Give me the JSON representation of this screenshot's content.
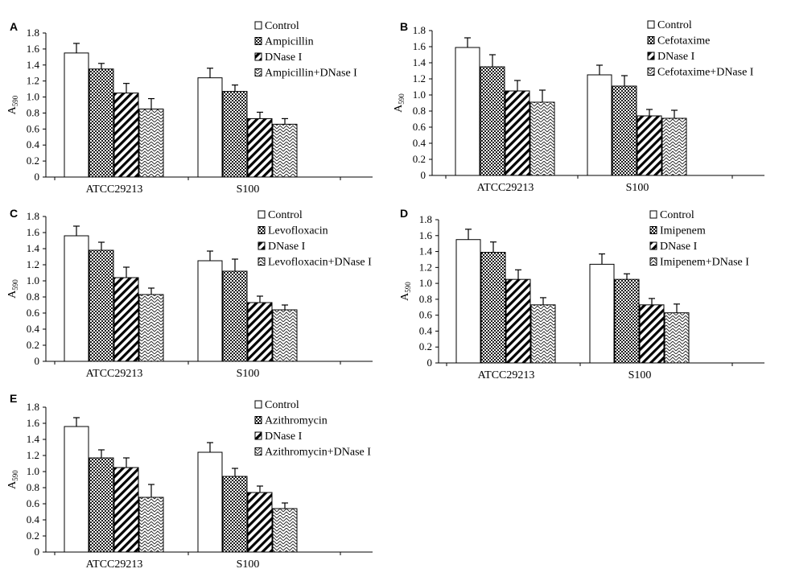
{
  "chart_data": [
    {
      "panel": "A",
      "type": "bar",
      "ylabel": "A590",
      "ylim": [
        0,
        1.8
      ],
      "yticks": [
        "0",
        "0.2",
        "0.4",
        "0.6",
        "0.8",
        "1.0",
        "1.2",
        "1.4",
        "1.6",
        "1.8"
      ],
      "categories": [
        "ATCC29213",
        "S100"
      ],
      "series": [
        {
          "name": "Control",
          "values": [
            1.55,
            1.24
          ],
          "errors": [
            0.12,
            0.12
          ]
        },
        {
          "name": "Ampicillin",
          "values": [
            1.35,
            1.07
          ],
          "errors": [
            0.07,
            0.08
          ]
        },
        {
          "name": "DNase I",
          "values": [
            1.05,
            0.73
          ],
          "errors": [
            0.12,
            0.08
          ]
        },
        {
          "name": "Ampicillin+DNase I",
          "values": [
            0.85,
            0.66
          ],
          "errors": [
            0.13,
            0.07
          ]
        }
      ]
    },
    {
      "panel": "B",
      "type": "bar",
      "ylabel": "A590",
      "ylim": [
        0,
        1.8
      ],
      "yticks": [
        "0",
        "0.2",
        "0.4",
        "0.6",
        "0.8",
        "1.0",
        "1.2",
        "1.4",
        "1.6",
        "1.8"
      ],
      "categories": [
        "ATCC29213",
        "S100"
      ],
      "series": [
        {
          "name": "Control",
          "values": [
            1.59,
            1.25
          ],
          "errors": [
            0.12,
            0.12
          ]
        },
        {
          "name": "Cefotaxime",
          "values": [
            1.35,
            1.11
          ],
          "errors": [
            0.15,
            0.13
          ]
        },
        {
          "name": "DNase I",
          "values": [
            1.05,
            0.74
          ],
          "errors": [
            0.13,
            0.08
          ]
        },
        {
          "name": "Cefotaxime+DNase I",
          "values": [
            0.91,
            0.71
          ],
          "errors": [
            0.15,
            0.1
          ]
        }
      ]
    },
    {
      "panel": "C",
      "type": "bar",
      "ylabel": "A590",
      "ylim": [
        0,
        1.8
      ],
      "yticks": [
        "0",
        "0.2",
        "0.4",
        "0.6",
        "0.8",
        "1.0",
        "1.2",
        "1.4",
        "1.6",
        "1.8"
      ],
      "categories": [
        "ATCC29213",
        "S100"
      ],
      "series": [
        {
          "name": "Control",
          "values": [
            1.56,
            1.25
          ],
          "errors": [
            0.12,
            0.12
          ]
        },
        {
          "name": "Levofloxacin",
          "values": [
            1.38,
            1.12
          ],
          "errors": [
            0.1,
            0.15
          ]
        },
        {
          "name": "DNase I",
          "values": [
            1.04,
            0.73
          ],
          "errors": [
            0.13,
            0.08
          ]
        },
        {
          "name": "Levofloxacin+DNase I",
          "values": [
            0.83,
            0.64
          ],
          "errors": [
            0.08,
            0.06
          ]
        }
      ]
    },
    {
      "panel": "D",
      "type": "bar",
      "ylabel": "A590",
      "ylim": [
        0,
        1.8
      ],
      "yticks": [
        "0",
        "0.2",
        "0.4",
        "0.6",
        "0.8",
        "1.0",
        "1.2",
        "1.4",
        "1.6",
        "1.8"
      ],
      "categories": [
        "ATCC29213",
        "S100"
      ],
      "series": [
        {
          "name": "Control",
          "values": [
            1.55,
            1.24
          ],
          "errors": [
            0.13,
            0.13
          ]
        },
        {
          "name": "Imipenem",
          "values": [
            1.39,
            1.05
          ],
          "errors": [
            0.13,
            0.07
          ]
        },
        {
          "name": "DNase I",
          "values": [
            1.05,
            0.73
          ],
          "errors": [
            0.12,
            0.08
          ]
        },
        {
          "name": "Imipenem+DNase I",
          "values": [
            0.73,
            0.63
          ],
          "errors": [
            0.09,
            0.11
          ]
        }
      ]
    },
    {
      "panel": "E",
      "type": "bar",
      "ylabel": "A590",
      "ylim": [
        0,
        1.8
      ],
      "yticks": [
        "0",
        "0.2",
        "0.4",
        "0.6",
        "0.8",
        "1.0",
        "1.2",
        "1.4",
        "1.6",
        "1.8"
      ],
      "categories": [
        "ATCC29213",
        "S100"
      ],
      "series": [
        {
          "name": "Control",
          "values": [
            1.56,
            1.24
          ],
          "errors": [
            0.11,
            0.12
          ]
        },
        {
          "name": "Azithromycin",
          "values": [
            1.17,
            0.94
          ],
          "errors": [
            0.1,
            0.1
          ]
        },
        {
          "name": "DNase I",
          "values": [
            1.05,
            0.74
          ],
          "errors": [
            0.12,
            0.08
          ]
        },
        {
          "name": "Azithromycin+DNase I",
          "values": [
            0.68,
            0.54
          ],
          "errors": [
            0.16,
            0.07
          ]
        }
      ]
    }
  ]
}
